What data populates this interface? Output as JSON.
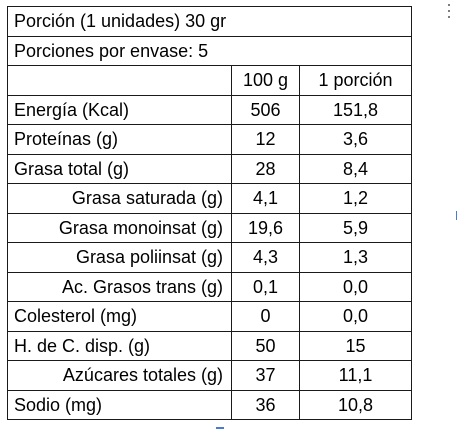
{
  "header": {
    "serving": "Porción (1 unidades) 30 gr",
    "servings_per_container": "Porciones por envase:  5"
  },
  "columns": [
    "",
    "100 g",
    "1 porción"
  ],
  "rows": [
    {
      "name": "Energía (Kcal)",
      "per_100g": "506",
      "per_portion": "151,8",
      "indent": "none"
    },
    {
      "name": "Proteínas (g)",
      "per_100g": "12",
      "per_portion": "3,6",
      "indent": "none"
    },
    {
      "name": "Grasa total (g)",
      "per_100g": "28",
      "per_portion": "8,4",
      "indent": "none"
    },
    {
      "name": "Grasa saturada (g)",
      "per_100g": "4,1",
      "per_portion": "1,2",
      "indent": "right"
    },
    {
      "name": "Grasa monoinsat (g)",
      "per_100g": "19,6",
      "per_portion": "5,9",
      "indent": "right"
    },
    {
      "name": "Grasa poliinsat (g)",
      "per_100g": "4,3",
      "per_portion": "1,3",
      "indent": "right"
    },
    {
      "name": "Ac. Grasos trans (g)",
      "per_100g": "0,1",
      "per_portion": "0,0",
      "indent": "right"
    },
    {
      "name": "Colesterol (mg)",
      "per_100g": "0",
      "per_portion": "0,0",
      "indent": "none"
    },
    {
      "name": "H. de C. disp. (g)",
      "per_100g": "50",
      "per_portion": "15",
      "indent": "none"
    },
    {
      "name": "Azúcares totales (g)",
      "per_100g": "37",
      "per_portion": "11,1",
      "indent": "right"
    },
    {
      "name": "Sodio (mg)",
      "per_100g": "36",
      "per_portion": "10,8",
      "indent": "none"
    }
  ],
  "colors": {
    "border": "#1a1a1a",
    "text": "#000000",
    "background": "#ffffff",
    "selection_accent": "#4a7bd1"
  },
  "icons": {
    "table_handle": "vertical-ellipsis-icon"
  }
}
